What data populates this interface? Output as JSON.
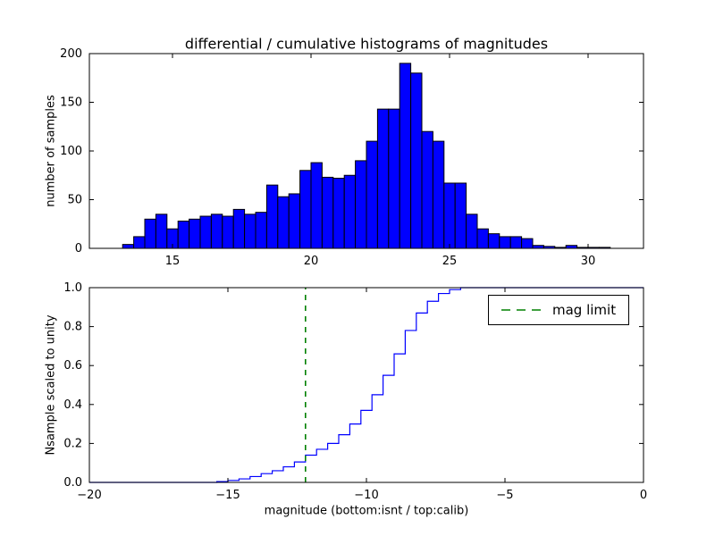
{
  "colors": {
    "background": "#ffffff",
    "bar_fill": "#0000ff",
    "bar_edge": "#000000",
    "cumulative_line": "#0000ff",
    "mag_limit_line": "#008000",
    "axis": "#000000"
  },
  "chart_data": [
    {
      "type": "bar",
      "title": "differential / cumulative histograms of magnitudes",
      "ylabel": "number of samples",
      "xlim": [
        12,
        32
      ],
      "ylim": [
        0,
        200
      ],
      "grid": false,
      "xtick_vals": [
        15,
        20,
        25,
        30
      ],
      "xtick_labels": [
        "15",
        "20",
        "25",
        "30"
      ],
      "ytick_vals": [
        0,
        50,
        100,
        150,
        200
      ],
      "ytick_labels": [
        "0",
        "50",
        "100",
        "150",
        "200"
      ],
      "bin_start": 13.2,
      "bin_width": 0.4,
      "values": [
        4,
        12,
        30,
        35,
        20,
        28,
        30,
        33,
        35,
        33,
        40,
        35,
        37,
        65,
        53,
        56,
        80,
        88,
        73,
        72,
        75,
        90,
        110,
        143,
        143,
        190,
        180,
        120,
        110,
        67,
        67,
        35,
        20,
        15,
        12,
        12,
        10,
        3,
        2,
        1,
        3,
        1,
        1,
        1
      ]
    },
    {
      "type": "line",
      "ylabel": "Nsample scaled to unity",
      "xlabel": "magnitude (bottom:isnt / top:calib)",
      "xlim": [
        -20,
        0
      ],
      "ylim": [
        0,
        1
      ],
      "grid": false,
      "legend_position": "upper right",
      "xtick_vals": [
        -20,
        -15,
        -10,
        -5,
        0
      ],
      "xtick_labels": [
        "−20",
        "−15",
        "−10",
        "−5",
        "0"
      ],
      "ytick_vals": [
        0,
        0.2,
        0.4,
        0.6,
        0.8,
        1
      ],
      "ytick_labels": [
        "0.0",
        "0.2",
        "0.4",
        "0.6",
        "0.8",
        "1.0"
      ],
      "step_start": -15.4,
      "step_width": 0.4,
      "cumulative": [
        0.004,
        0.01,
        0.018,
        0.03,
        0.045,
        0.06,
        0.08,
        0.105,
        0.14,
        0.17,
        0.2,
        0.245,
        0.3,
        0.37,
        0.45,
        0.55,
        0.66,
        0.78,
        0.87,
        0.93,
        0.97,
        0.99,
        1.0
      ],
      "mag_limit_x": -12.2,
      "legend_label": "mag limit"
    }
  ]
}
